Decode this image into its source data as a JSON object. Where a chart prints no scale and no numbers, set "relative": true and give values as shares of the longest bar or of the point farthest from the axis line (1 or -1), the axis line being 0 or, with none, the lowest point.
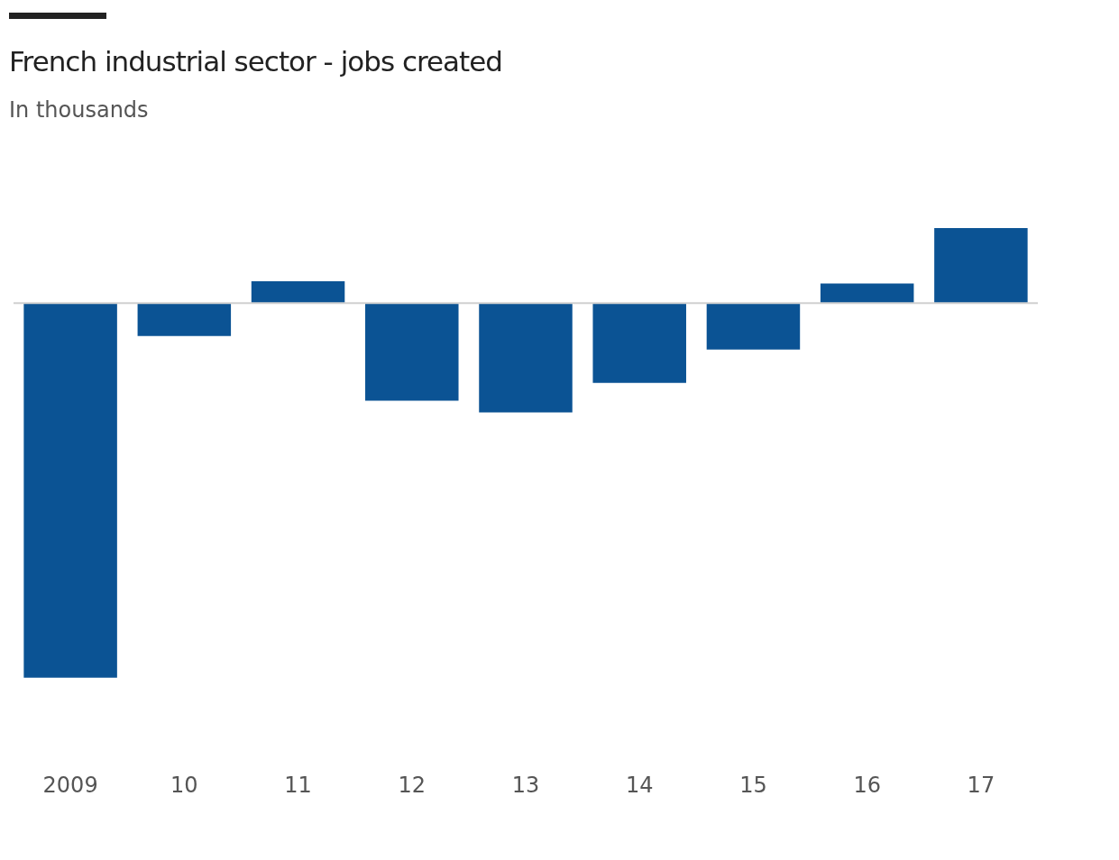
{
  "chart_data": {
    "type": "bar",
    "title": "French industrial sector - jobs created",
    "subtitle": "In thousands",
    "relative": true,
    "color": "#0b5394",
    "categories": [
      "2009",
      "10",
      "11",
      "12",
      "13",
      "14",
      "15",
      "16",
      "17"
    ],
    "values": [
      -1,
      -0.088,
      0.058,
      -0.261,
      -0.292,
      -0.213,
      -0.124,
      0.052,
      0.2
    ]
  }
}
